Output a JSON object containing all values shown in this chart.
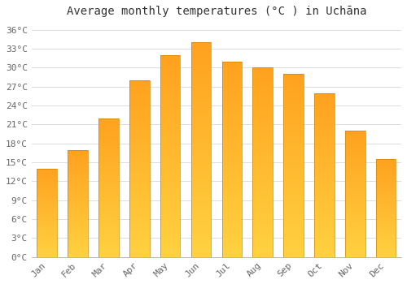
{
  "title": "Average monthly temperatures (°C ) in Uchāna",
  "months": [
    "Jan",
    "Feb",
    "Mar",
    "Apr",
    "May",
    "Jun",
    "Jul",
    "Aug",
    "Sep",
    "Oct",
    "Nov",
    "Dec"
  ],
  "values": [
    14,
    17,
    22,
    28,
    32,
    34,
    31,
    30,
    29,
    26,
    20,
    15.5
  ],
  "bar_color_light": "#FFD040",
  "bar_color_dark": "#FFA020",
  "bar_edge_color": "#CC8800",
  "yticks": [
    0,
    3,
    6,
    9,
    12,
    15,
    18,
    21,
    24,
    27,
    30,
    33,
    36
  ],
  "ylim": [
    0,
    37
  ],
  "background_color": "#FFFFFF",
  "grid_color": "#DDDDDD",
  "title_fontsize": 10,
  "tick_fontsize": 8,
  "font_family": "monospace"
}
